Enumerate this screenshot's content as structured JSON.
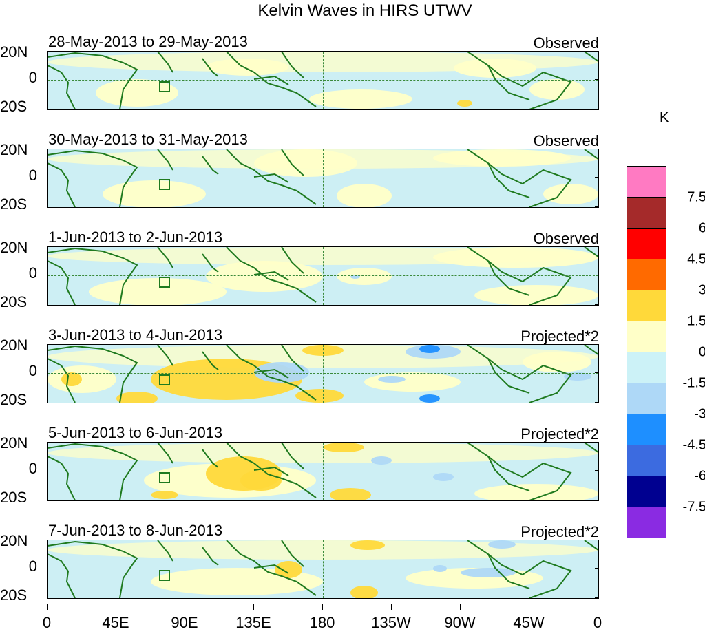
{
  "title": "Kelvin Waves in HIRS UTWV",
  "units": "K",
  "lat_labels": [
    "20N",
    "0",
    "20S"
  ],
  "lon_labels": [
    "0",
    "45E",
    "90E",
    "135E",
    "180",
    "135W",
    "90W",
    "45W",
    "0"
  ],
  "panels": [
    {
      "date": "28-May-2013 to 29-May-2013",
      "tag": "Observed"
    },
    {
      "date": "30-May-2013 to 31-May-2013",
      "tag": "Observed"
    },
    {
      "date": "1-Jun-2013 to 2-Jun-2013",
      "tag": "Observed"
    },
    {
      "date": "3-Jun-2013 to 4-Jun-2013",
      "tag": "Projected*2"
    },
    {
      "date": "5-Jun-2013 to 6-Jun-2013",
      "tag": "Projected*2"
    },
    {
      "date": "7-Jun-2013 to 8-Jun-2013",
      "tag": "Projected*2"
    }
  ],
  "colorbar": {
    "colors": [
      "#ff7ac2",
      "#a52a2a",
      "#ff0000",
      "#ff6a00",
      "#ffd93a",
      "#ffffc8",
      "#ccf2f7",
      "#aed8f7",
      "#1e8fff",
      "#3c6be0",
      "#000090",
      "#8a2be2"
    ],
    "labels": [
      "7.5",
      "6",
      "4.5",
      "3",
      "1.5",
      "0",
      "-1.5",
      "-3",
      "-4.5",
      "-6",
      "-7.5"
    ]
  }
}
